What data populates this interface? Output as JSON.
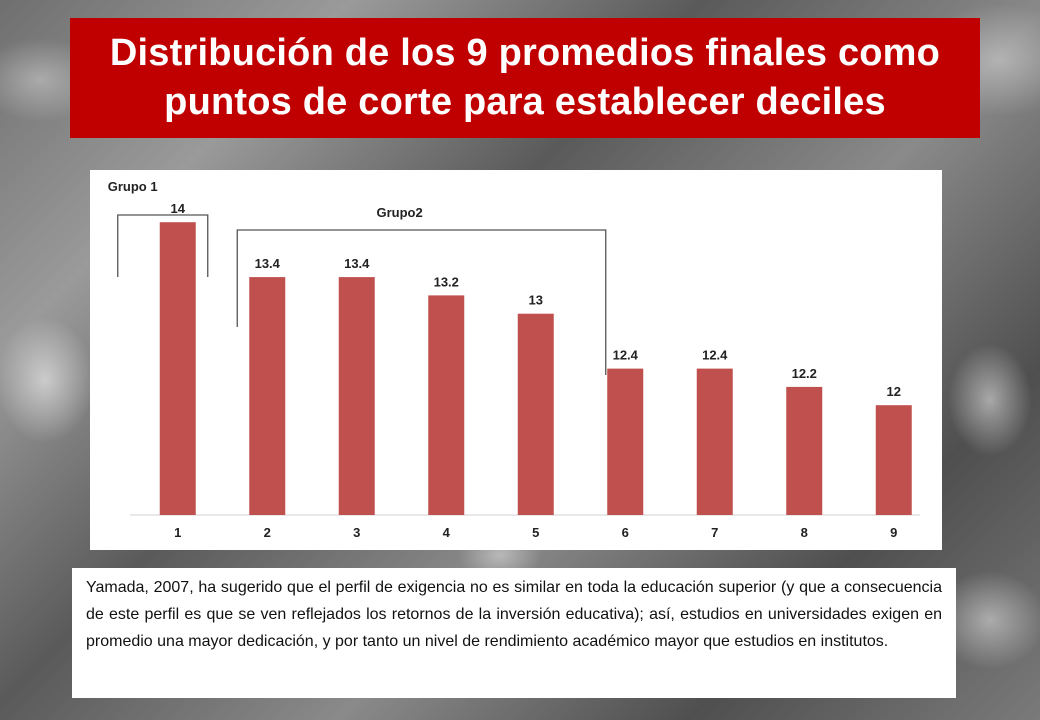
{
  "slide": {
    "title_line1": "Distribución de los 9 promedios finales como",
    "title_line2": "puntos de corte para establecer deciles",
    "paragraph": "Yamada, 2007,  ha sugerido que el perfil de exigencia no es similar en toda la educación superior (y que a consecuencia de este perfil es que se ven reflejados los retornos de la inversión educativa); así, estudios en universidades exigen en promedio una mayor dedicación, y por tanto un nivel de rendimiento académico mayor que estudios en institutos."
  },
  "colors": {
    "banner": "#c00000",
    "bar": "#c0504d",
    "bracket": "#555555"
  },
  "chart_data": {
    "type": "bar",
    "title": "",
    "xlabel": "",
    "ylabel": "",
    "categories": [
      "1",
      "2",
      "3",
      "4",
      "5",
      "6",
      "7",
      "8",
      "9"
    ],
    "values": [
      14,
      13.4,
      13.4,
      13.2,
      13,
      12.4,
      12.4,
      12.2,
      12
    ],
    "data_labels": [
      "14",
      "13.4",
      "13.4",
      "13.2",
      "13",
      "12.4",
      "12.4",
      "12.2",
      "12"
    ],
    "ylim": [
      10.8,
      14.3
    ],
    "grid": false,
    "annotations": [
      {
        "label": "Grupo 1",
        "from_category": "1",
        "to_category": "1"
      },
      {
        "label": "Grupo2",
        "from_category": "2",
        "to_category": "5"
      }
    ]
  }
}
